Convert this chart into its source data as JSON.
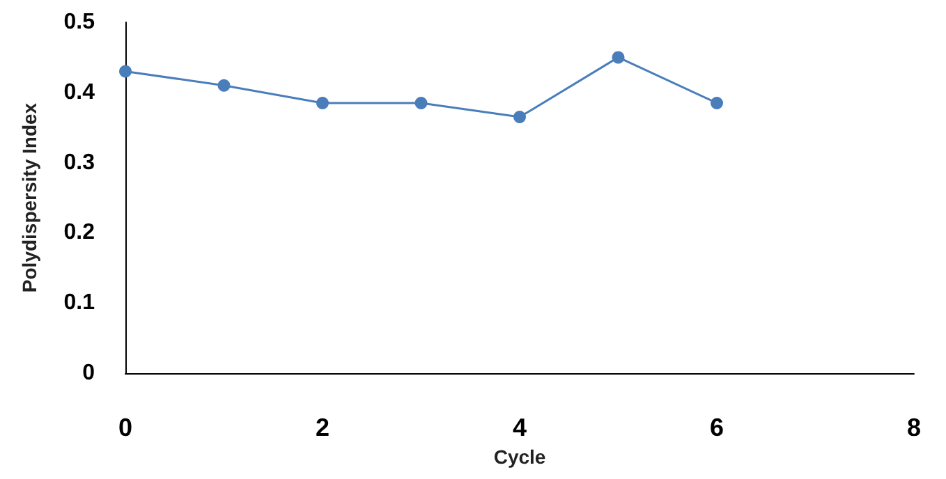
{
  "chart_data": {
    "type": "line",
    "xlabel": "Cycle",
    "ylabel": "Polydispersity Index",
    "x": [
      0,
      1,
      2,
      3,
      4,
      5,
      6
    ],
    "series": [
      {
        "color": "#4a7ebb",
        "values": [
          0.43,
          0.41,
          0.385,
          0.385,
          0.365,
          0.45,
          0.385
        ]
      }
    ],
    "xlim": [
      0,
      8
    ],
    "xticks": [
      0,
      2,
      4,
      6,
      8
    ],
    "ylim": [
      0,
      0.5
    ],
    "yticks": [
      0,
      0.1,
      0.2,
      0.3,
      0.4,
      0.5
    ],
    "grid": false,
    "marker": "circle",
    "line_style": "solid"
  }
}
